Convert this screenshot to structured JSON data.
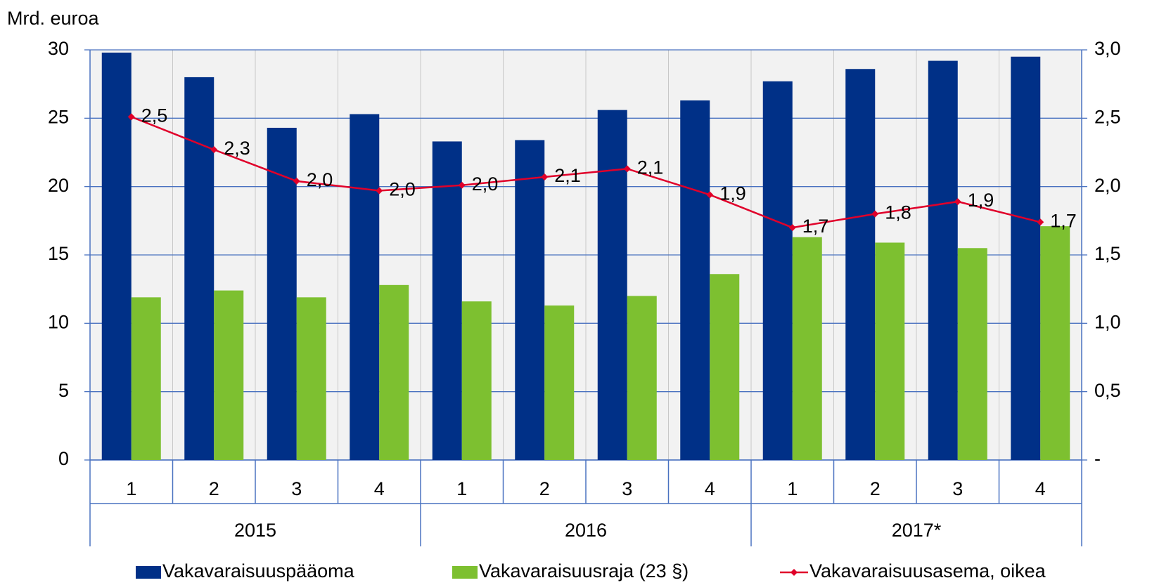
{
  "chart_data": {
    "type": "bar",
    "y_label": "Mrd. euroa",
    "categories": [
      "1",
      "2",
      "3",
      "4",
      "1",
      "2",
      "3",
      "4",
      "1",
      "2",
      "3",
      "4"
    ],
    "groups": [
      "2015",
      "2016",
      "2017*"
    ],
    "series": [
      {
        "name": "Vakavaraisuuspääoma",
        "color": "#003087",
        "type": "bar",
        "values": [
          29.8,
          28.0,
          24.3,
          25.3,
          23.3,
          23.4,
          25.6,
          26.3,
          27.7,
          28.6,
          29.2,
          29.5
        ]
      },
      {
        "name": "Vakavaraisuusraja (23 §)",
        "color": "#7dc030",
        "type": "bar",
        "values": [
          11.9,
          12.4,
          11.9,
          12.8,
          11.6,
          11.3,
          12.0,
          13.6,
          16.3,
          15.9,
          15.5,
          17.1
        ]
      },
      {
        "name": "Vakavaraisuusasema, oikea",
        "color": "#e0002a",
        "type": "line",
        "axis": "y2",
        "values": [
          2.51,
          2.27,
          2.04,
          1.97,
          2.01,
          2.07,
          2.13,
          1.94,
          1.7,
          1.8,
          1.89,
          1.74
        ],
        "value_labels": [
          "2,5",
          "2,3",
          "2,0",
          "2,0",
          "2,0",
          "2,1",
          "2,1",
          "1,9",
          "1,7",
          "1,8",
          "1,9",
          "1,7"
        ]
      }
    ],
    "ylim": [
      0,
      30
    ],
    "yticks": [
      0,
      5,
      10,
      15,
      20,
      25,
      30
    ],
    "y2lim": [
      0,
      3
    ],
    "y2ticks": [
      {
        "value": 0,
        "label": "-"
      },
      {
        "value": 0.5,
        "label": "0,5"
      },
      {
        "value": 1,
        "label": "1,0"
      },
      {
        "value": 1.5,
        "label": "1,5"
      },
      {
        "value": 2,
        "label": "2,0"
      },
      {
        "value": 2.5,
        "label": "2,5"
      },
      {
        "value": 3,
        "label": "3,0"
      }
    ],
    "grid": true,
    "legend": "bottom"
  }
}
